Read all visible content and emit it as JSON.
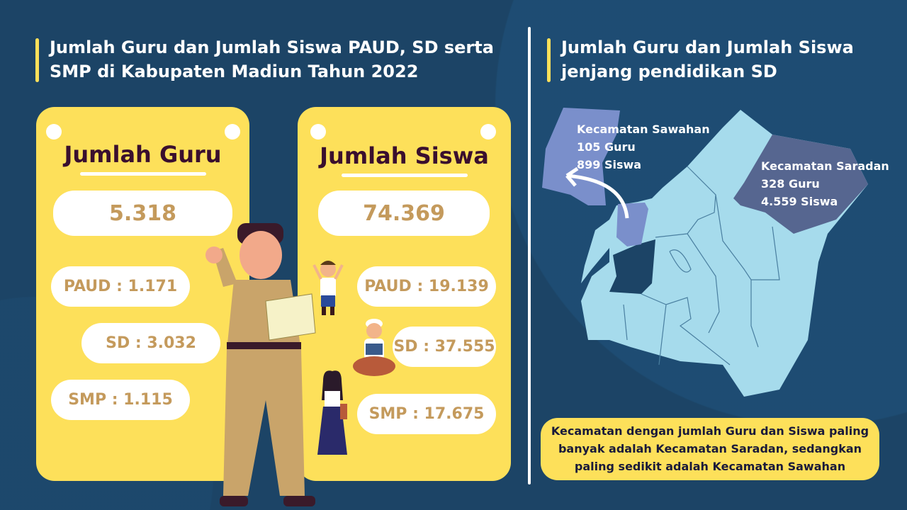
{
  "left": {
    "title": "Jumlah Guru dan Jumlah Siswa PAUD, SD serta SMP di Kabupaten Madiun Tahun 2022",
    "guru": {
      "heading": "Jumlah Guru",
      "total": "5.318",
      "paud": "PAUD : 1.171",
      "sd": "SD : 3.032",
      "smp": "SMP : 1.115"
    },
    "siswa": {
      "heading": "Jumlah Siswa",
      "total": "74.369",
      "paud": "PAUD : 19.139",
      "sd": "SD : 37.555",
      "smp": "SMP : 17.675"
    }
  },
  "right": {
    "title": "Jumlah Guru dan Jumlah Siswa jenjang pendidikan SD",
    "sawahan": {
      "name": "Kecamatan Sawahan",
      "guru": "105 Guru",
      "siswa": "899 Siswa"
    },
    "saradan": {
      "name": "Kecamatan Saradan",
      "guru": "328 Guru",
      "siswa": "4.559 Siswa"
    },
    "note": "Kecamatan dengan jumlah Guru dan Siswa paling banyak adalah Kecamatan Saradan, sedangkan paling sedikit adalah Kecamatan Sawahan"
  },
  "colors": {
    "background": "#1c4466",
    "card": "#fde05a",
    "map": "#a6dbec",
    "sawahan": "#7a8fcb",
    "saradan": "#566690"
  }
}
